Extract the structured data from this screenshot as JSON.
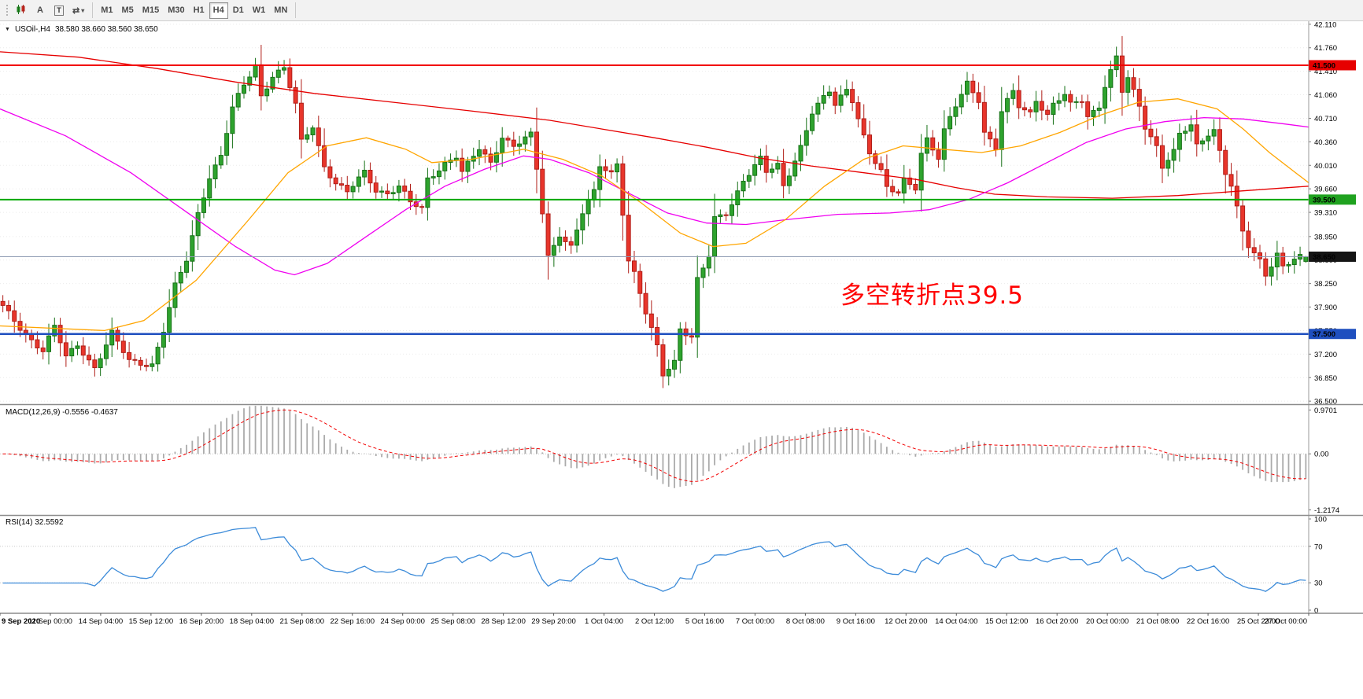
{
  "toolbar": {
    "tool_buttons": [
      {
        "name": "chart-window",
        "label": ""
      },
      {
        "name": "annotate-a",
        "label": "A"
      },
      {
        "name": "text-tool",
        "label": "T"
      },
      {
        "name": "cycle-symbols",
        "label": "⇄",
        "caret": "▾"
      }
    ],
    "timeframes": {
      "items": [
        "M1",
        "M5",
        "M15",
        "M30",
        "H1",
        "H4",
        "D1",
        "W1",
        "MN"
      ],
      "active": "H4"
    }
  },
  "main_chart": {
    "expander_icon": "▼",
    "symbol_title": "USOil-,H4",
    "ohlc": "38.580 38.660 38.560 38.650",
    "annotation": {
      "text": "多空转折点39.5",
      "color": "#FF0000"
    },
    "price_axis_labels": [
      "42.110",
      "41.760",
      "41.410",
      "41.060",
      "40.710",
      "40.360",
      "40.010",
      "39.660",
      "39.310",
      "38.950",
      "38.600",
      "38.250",
      "37.900",
      "37.550",
      "37.200",
      "36.850",
      "36.500"
    ],
    "badges": [
      {
        "value": "41.500",
        "price": 41.5,
        "bg": "#E60000"
      },
      {
        "value": "39.500",
        "price": 39.5,
        "bg": "#1FA21F"
      },
      {
        "value": "38.650",
        "price": 38.65,
        "bg": "#141414"
      },
      {
        "value": "37.500",
        "price": 37.5,
        "bg": "#1F4FBF"
      }
    ],
    "hlines": [
      {
        "price": 41.5,
        "color": "#F20000",
        "width": 2
      },
      {
        "price": 39.5,
        "color": "#00A800",
        "width": 2
      },
      {
        "price": 38.65,
        "color": "#8E9BB3",
        "width": 1
      },
      {
        "price": 37.5,
        "color": "#1F4FBF",
        "width": 2.5
      }
    ],
    "price_range": {
      "top": 42.155,
      "bottom": 36.455
    }
  },
  "chart_data": {
    "type": "candlestick",
    "symbol": "USOil-",
    "timeframe": "H4",
    "ylim": [
      36.5,
      42.11
    ],
    "last_ohlc": {
      "open": 38.58,
      "high": 38.66,
      "low": 38.56,
      "close": 38.65
    },
    "bar_count": 228,
    "close_anchors": [
      [
        0,
        37.9
      ],
      [
        4,
        37.5
      ],
      [
        7,
        37.25
      ],
      [
        9,
        37.6
      ],
      [
        11,
        37.15
      ],
      [
        13,
        37.35
      ],
      [
        16,
        37.0
      ],
      [
        19,
        37.5
      ],
      [
        22,
        37.1
      ],
      [
        26,
        37.05
      ],
      [
        28,
        37.55
      ],
      [
        30,
        38.2
      ],
      [
        32,
        38.6
      ],
      [
        34,
        39.3
      ],
      [
        36,
        39.85
      ],
      [
        38,
        40.15
      ],
      [
        40,
        40.85
      ],
      [
        42,
        41.2
      ],
      [
        44,
        41.5
      ],
      [
        45,
        41.05
      ],
      [
        47,
        41.35
      ],
      [
        49,
        41.45
      ],
      [
        51,
        40.9
      ],
      [
        52,
        40.35
      ],
      [
        54,
        40.6
      ],
      [
        56,
        40.0
      ],
      [
        58,
        39.75
      ],
      [
        60,
        39.6
      ],
      [
        63,
        39.9
      ],
      [
        65,
        39.65
      ],
      [
        67,
        39.6
      ],
      [
        69,
        39.7
      ],
      [
        71,
        39.45
      ],
      [
        73,
        39.35
      ],
      [
        74,
        39.8
      ],
      [
        77,
        40.05
      ],
      [
        79,
        40.15
      ],
      [
        80,
        39.9
      ],
      [
        83,
        40.25
      ],
      [
        85,
        40.05
      ],
      [
        87,
        40.45
      ],
      [
        89,
        40.3
      ],
      [
        92,
        40.45
      ],
      [
        93,
        39.95
      ],
      [
        95,
        38.65
      ],
      [
        97,
        39.0
      ],
      [
        99,
        38.8
      ],
      [
        101,
        39.3
      ],
      [
        103,
        39.6
      ],
      [
        104,
        40.0
      ],
      [
        106,
        39.9
      ],
      [
        107,
        40.05
      ],
      [
        109,
        38.6
      ],
      [
        110,
        38.4
      ],
      [
        112,
        37.8
      ],
      [
        114,
        37.3
      ],
      [
        115,
        36.9
      ],
      [
        117,
        37.1
      ],
      [
        118,
        37.6
      ],
      [
        120,
        37.45
      ],
      [
        121,
        38.3
      ],
      [
        123,
        38.65
      ],
      [
        124,
        39.2
      ],
      [
        126,
        39.3
      ],
      [
        127,
        39.45
      ],
      [
        129,
        39.8
      ],
      [
        132,
        40.1
      ],
      [
        133,
        39.9
      ],
      [
        135,
        40.0
      ],
      [
        136,
        39.7
      ],
      [
        138,
        40.1
      ],
      [
        139,
        40.3
      ],
      [
        141,
        40.8
      ],
      [
        144,
        41.1
      ],
      [
        145,
        40.9
      ],
      [
        147,
        41.15
      ],
      [
        148,
        41.0
      ],
      [
        150,
        40.45
      ],
      [
        151,
        40.2
      ],
      [
        153,
        39.9
      ],
      [
        154,
        39.65
      ],
      [
        156,
        39.6
      ],
      [
        157,
        39.8
      ],
      [
        159,
        39.7
      ],
      [
        160,
        40.2
      ],
      [
        161,
        40.4
      ],
      [
        163,
        40.1
      ],
      [
        164,
        40.5
      ],
      [
        166,
        40.9
      ],
      [
        168,
        41.25
      ],
      [
        170,
        41.0
      ],
      [
        171,
        40.5
      ],
      [
        173,
        40.25
      ],
      [
        174,
        40.8
      ],
      [
        176,
        41.1
      ],
      [
        177,
        40.9
      ],
      [
        179,
        40.8
      ],
      [
        180,
        41.0
      ],
      [
        182,
        40.75
      ],
      [
        183,
        40.9
      ],
      [
        185,
        41.05
      ],
      [
        186,
        40.9
      ],
      [
        188,
        41.0
      ],
      [
        189,
        40.75
      ],
      [
        191,
        40.9
      ],
      [
        192,
        41.2
      ],
      [
        194,
        41.6
      ],
      [
        195,
        41.1
      ],
      [
        196,
        41.3
      ],
      [
        198,
        40.9
      ],
      [
        199,
        40.6
      ],
      [
        201,
        40.3
      ],
      [
        202,
        40.0
      ],
      [
        204,
        40.2
      ],
      [
        205,
        40.45
      ],
      [
        207,
        40.6
      ],
      [
        208,
        40.3
      ],
      [
        210,
        40.5
      ],
      [
        211,
        40.55
      ],
      [
        213,
        39.9
      ],
      [
        214,
        39.7
      ],
      [
        216,
        39.0
      ],
      [
        217,
        38.8
      ],
      [
        219,
        38.6
      ],
      [
        220,
        38.4
      ],
      [
        222,
        38.7
      ],
      [
        223,
        38.5
      ],
      [
        225,
        38.6
      ],
      [
        227,
        38.65
      ]
    ],
    "x_labels": [
      "9 Sep 2020",
      "11 Sep 00:00",
      "14 Sep 04:00",
      "15 Sep 12:00",
      "16 Sep 20:00",
      "18 Sep 04:00",
      "21 Sep 08:00",
      "22 Sep 16:00",
      "24 Sep 00:00",
      "25 Sep 08:00",
      "28 Sep 12:00",
      "29 Sep 20:00",
      "1 Oct 04:00",
      "2 Oct 12:00",
      "5 Oct 16:00",
      "7 Oct 00:00",
      "8 Oct 08:00",
      "9 Oct 16:00",
      "12 Oct 20:00",
      "14 Oct 04:00",
      "15 Oct 12:00",
      "16 Oct 20:00",
      "20 Oct 00:00",
      "21 Oct 08:00",
      "22 Oct 16:00",
      "25 Oct 23:00",
      "27 Oct 00:00"
    ],
    "moving_averages": [
      {
        "name": "ma-slow-red",
        "color": "#E60000",
        "points": [
          [
            0,
            41.7
          ],
          [
            0.06,
            41.62
          ],
          [
            0.12,
            41.45
          ],
          [
            0.18,
            41.25
          ],
          [
            0.24,
            41.08
          ],
          [
            0.3,
            40.95
          ],
          [
            0.36,
            40.82
          ],
          [
            0.42,
            40.68
          ],
          [
            0.46,
            40.55
          ],
          [
            0.5,
            40.42
          ],
          [
            0.54,
            40.28
          ],
          [
            0.58,
            40.12
          ],
          [
            0.62,
            40.0
          ],
          [
            0.66,
            39.9
          ],
          [
            0.7,
            39.8
          ],
          [
            0.73,
            39.68
          ],
          [
            0.76,
            39.58
          ],
          [
            0.8,
            39.54
          ],
          [
            0.85,
            39.52
          ],
          [
            0.9,
            39.56
          ],
          [
            0.95,
            39.63
          ],
          [
            1,
            39.7
          ]
        ]
      },
      {
        "name": "ma-mid-magenta",
        "color": "#F000F0",
        "points": [
          [
            0,
            40.85
          ],
          [
            0.05,
            40.45
          ],
          [
            0.1,
            39.9
          ],
          [
            0.14,
            39.35
          ],
          [
            0.18,
            38.8
          ],
          [
            0.21,
            38.45
          ],
          [
            0.225,
            38.38
          ],
          [
            0.25,
            38.55
          ],
          [
            0.28,
            38.95
          ],
          [
            0.31,
            39.35
          ],
          [
            0.34,
            39.7
          ],
          [
            0.37,
            39.95
          ],
          [
            0.4,
            40.15
          ],
          [
            0.42,
            40.1
          ],
          [
            0.45,
            39.9
          ],
          [
            0.48,
            39.6
          ],
          [
            0.51,
            39.3
          ],
          [
            0.54,
            39.15
          ],
          [
            0.57,
            39.13
          ],
          [
            0.6,
            39.2
          ],
          [
            0.64,
            39.28
          ],
          [
            0.68,
            39.3
          ],
          [
            0.71,
            39.35
          ],
          [
            0.74,
            39.5
          ],
          [
            0.77,
            39.75
          ],
          [
            0.8,
            40.05
          ],
          [
            0.83,
            40.35
          ],
          [
            0.86,
            40.55
          ],
          [
            0.89,
            40.66
          ],
          [
            0.92,
            40.72
          ],
          [
            0.95,
            40.7
          ],
          [
            0.98,
            40.63
          ],
          [
            1,
            40.58
          ]
        ]
      },
      {
        "name": "ma-fast-orange",
        "color": "#FFA500",
        "points": [
          [
            0,
            37.62
          ],
          [
            0.08,
            37.55
          ],
          [
            0.11,
            37.7
          ],
          [
            0.15,
            38.3
          ],
          [
            0.19,
            39.2
          ],
          [
            0.22,
            39.9
          ],
          [
            0.25,
            40.3
          ],
          [
            0.28,
            40.42
          ],
          [
            0.31,
            40.25
          ],
          [
            0.33,
            40.05
          ],
          [
            0.36,
            40.1
          ],
          [
            0.4,
            40.25
          ],
          [
            0.43,
            40.1
          ],
          [
            0.46,
            39.85
          ],
          [
            0.49,
            39.45
          ],
          [
            0.52,
            39.0
          ],
          [
            0.545,
            38.8
          ],
          [
            0.57,
            38.85
          ],
          [
            0.6,
            39.2
          ],
          [
            0.63,
            39.7
          ],
          [
            0.66,
            40.1
          ],
          [
            0.69,
            40.3
          ],
          [
            0.72,
            40.25
          ],
          [
            0.75,
            40.2
          ],
          [
            0.78,
            40.3
          ],
          [
            0.81,
            40.5
          ],
          [
            0.84,
            40.75
          ],
          [
            0.87,
            40.95
          ],
          [
            0.9,
            41.0
          ],
          [
            0.93,
            40.85
          ],
          [
            0.95,
            40.55
          ],
          [
            0.97,
            40.2
          ],
          [
            1,
            39.75
          ]
        ]
      }
    ],
    "indicators": [
      {
        "type": "macd",
        "label": "MACD(12,26,9) -0.5556 -0.4637",
        "fast": 12,
        "slow": 26,
        "signal": 9,
        "values_text": [
          "-0.5556",
          "-0.4637"
        ],
        "axis_labels": [
          "0.9701",
          "0.00",
          "-1.2174"
        ],
        "ymax": 0.9701,
        "ymin": -1.2174,
        "histogram_color": "#ABABAB",
        "signal_color": "#F20000"
      },
      {
        "type": "rsi",
        "label": "RSI(14) 32.5592",
        "period": 14,
        "value_text": "32.5592",
        "axis_labels": [
          "100",
          "70",
          "30",
          "0"
        ],
        "levels": [
          70,
          30
        ],
        "line_color": "#3C8BD9"
      }
    ]
  }
}
